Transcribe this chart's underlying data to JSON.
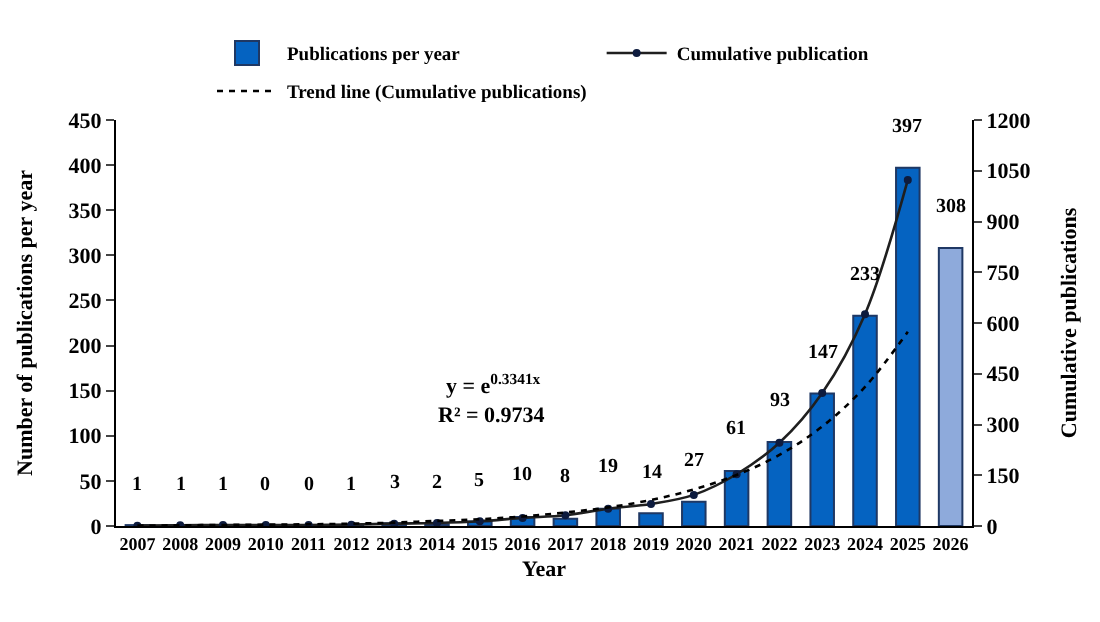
{
  "chart_data": {
    "type": "bar",
    "xlabel": "Year",
    "ylabel": "Number of publications per year",
    "y2label": "Cumulative publications",
    "categories": [
      "2007",
      "2008",
      "2009",
      "2010",
      "2011",
      "2012",
      "2013",
      "2014",
      "2015",
      "2016",
      "2017",
      "2018",
      "2019",
      "2020",
      "2021",
      "2022",
      "2023",
      "2024",
      "2025",
      "2026"
    ],
    "series": [
      {
        "name": "Publications per year",
        "color": "#0563c1",
        "colors": [
          "#0563c1",
          "#0563c1",
          "#0563c1",
          "#0563c1",
          "#0563c1",
          "#0563c1",
          "#0563c1",
          "#0563c1",
          "#0563c1",
          "#0563c1",
          "#0563c1",
          "#0563c1",
          "#0563c1",
          "#0563c1",
          "#0563c1",
          "#0563c1",
          "#0563c1",
          "#0563c1",
          "#0563c1",
          "#8eaadb"
        ],
        "values": [
          1,
          1,
          1,
          0,
          0,
          1,
          3,
          2,
          5,
          10,
          8,
          19,
          14,
          27,
          61,
          93,
          147,
          233,
          397,
          308
        ],
        "data_labels": true
      },
      {
        "name": "Cumulative publication",
        "type": "line",
        "axis": "y2",
        "color": "#1f1f1f",
        "marker": "circle",
        "line_style": "solid",
        "values": [
          1,
          2,
          3,
          3,
          3,
          4,
          7,
          9,
          14,
          24,
          32,
          51,
          65,
          92,
          153,
          246,
          393,
          626,
          1023,
          null
        ]
      },
      {
        "name": "Trend line (Cumulative publications)",
        "type": "line",
        "axis": "y2",
        "color": "#000000",
        "marker": "none",
        "line_style": "dotted",
        "values": [
          1,
          2,
          3,
          4,
          5,
          7,
          10,
          15,
          20,
          28,
          40,
          55,
          77,
          108,
          151,
          210,
          294,
          411,
          574,
          null
        ]
      }
    ],
    "ylim": [
      0,
      450
    ],
    "yticks": [
      0,
      50,
      100,
      150,
      200,
      250,
      300,
      350,
      400,
      450
    ],
    "y2lim": [
      0,
      1200
    ],
    "y2ticks": [
      0,
      150,
      300,
      450,
      600,
      750,
      900,
      1050,
      1200
    ],
    "annotations": [
      "y = e$^{0.3341x}$",
      "R² = 0.9734"
    ],
    "legend": "top",
    "grid": false
  }
}
